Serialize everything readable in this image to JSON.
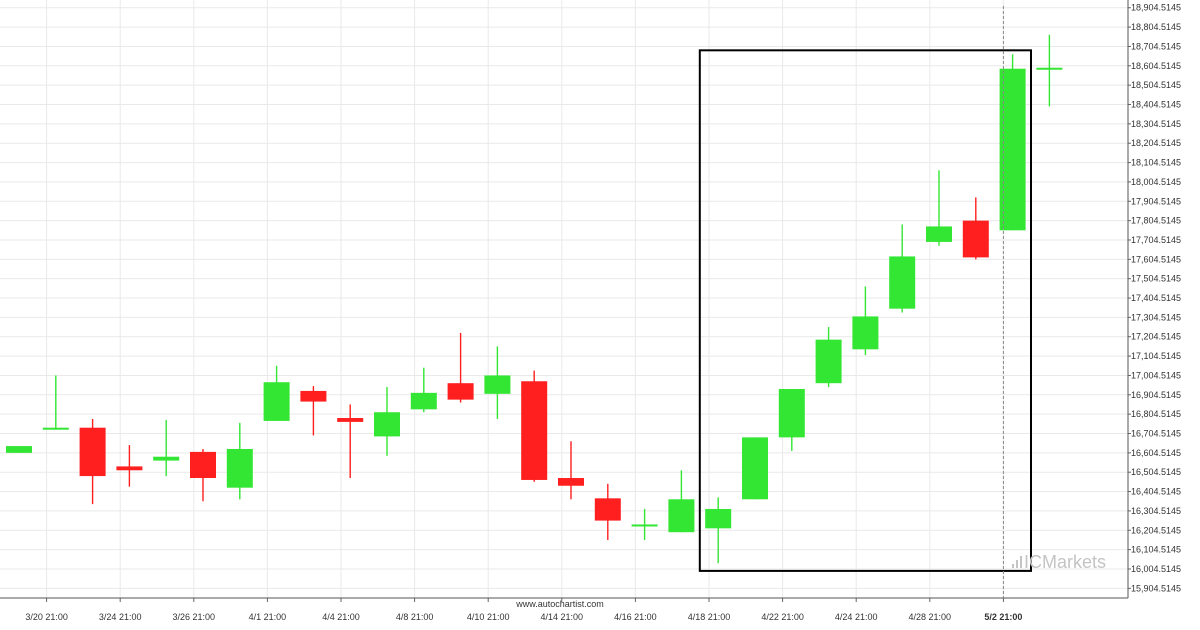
{
  "chart_data": {
    "type": "candlestick",
    "y_axis": {
      "side": "right",
      "range": [
        15854.5145,
        18944.5145
      ],
      "ticks": [
        "18,904.5145",
        "18,804.5145",
        "18,704.5145",
        "18,604.5145",
        "18,504.5145",
        "18,404.5145",
        "18,304.5145",
        "18,204.5145",
        "18,104.5145",
        "18,004.5145",
        "17,904.5145",
        "17,804.5145",
        "17,704.5145",
        "17,604.5145",
        "17,504.5145",
        "17,404.5145",
        "17,304.5145",
        "17,204.5145",
        "17,104.5145",
        "17,004.5145",
        "16,904.5145",
        "16,804.5145",
        "16,704.5145",
        "16,604.5145",
        "16,504.5145",
        "16,404.5145",
        "16,304.5145",
        "16,204.5145",
        "16,104.5145",
        "16,004.5145",
        "15,904.5145"
      ],
      "tick_values": [
        18904.5145,
        18804.5145,
        18704.5145,
        18604.5145,
        18504.5145,
        18404.5145,
        18304.5145,
        18204.5145,
        18104.5145,
        18004.5145,
        17904.5145,
        17804.5145,
        17704.5145,
        17604.5145,
        17504.5145,
        17404.5145,
        17304.5145,
        17204.5145,
        17104.5145,
        17004.5145,
        16904.5145,
        16804.5145,
        16704.5145,
        16604.5145,
        16504.5145,
        16404.5145,
        16304.5145,
        16204.5145,
        16104.5145,
        16004.5145,
        15904.5145
      ]
    },
    "x_axis": {
      "labels": [
        {
          "text": "3/20 21:00",
          "index": 0.75,
          "bold": false
        },
        {
          "text": "3/24 21:00",
          "index": 2.75,
          "bold": false
        },
        {
          "text": "3/26 21:00",
          "index": 4.75,
          "bold": false
        },
        {
          "text": "4/1 21:00",
          "index": 6.75,
          "bold": false
        },
        {
          "text": "4/4 21:00",
          "index": 8.75,
          "bold": false
        },
        {
          "text": "4/8 21:00",
          "index": 10.75,
          "bold": false
        },
        {
          "text": "4/10 21:00",
          "index": 12.75,
          "bold": false
        },
        {
          "text": "4/14 21:00",
          "index": 14.75,
          "bold": false
        },
        {
          "text": "4/16 21:00",
          "index": 16.75,
          "bold": false
        },
        {
          "text": "4/18 21:00",
          "index": 18.75,
          "bold": false
        },
        {
          "text": "4/22 21:00",
          "index": 20.75,
          "bold": false
        },
        {
          "text": "4/24 21:00",
          "index": 22.75,
          "bold": false
        },
        {
          "text": "4/28 21:00",
          "index": 24.75,
          "bold": false
        },
        {
          "text": "5/2 21:00",
          "index": 26.75,
          "bold": true
        }
      ]
    },
    "candles": [
      {
        "o": 16604.5,
        "h": 16639.5,
        "l": 16604.5,
        "c": 16639.5
      },
      {
        "o": 16724.5,
        "h": 17004.5,
        "l": 16724.5,
        "c": 16734.5
      },
      {
        "o": 16734.5,
        "h": 16779.5,
        "l": 16339.5,
        "c": 16484.5
      },
      {
        "o": 16534.5,
        "h": 16644.5,
        "l": 16429.5,
        "c": 16514.5
      },
      {
        "o": 16564.5,
        "h": 16774.5,
        "l": 16484.5,
        "c": 16584.5
      },
      {
        "o": 16609.5,
        "h": 16624.5,
        "l": 16354.5,
        "c": 16474.5
      },
      {
        "o": 16424.5,
        "h": 16759.5,
        "l": 16364.5,
        "c": 16624.5
      },
      {
        "o": 16769.5,
        "h": 17054.5,
        "l": 16769.5,
        "c": 16969.5
      },
      {
        "o": 16924.5,
        "h": 16949.5,
        "l": 16694.5,
        "c": 16869.5
      },
      {
        "o": 16784.5,
        "h": 16854.5,
        "l": 16474.5,
        "c": 16764.5
      },
      {
        "o": 16689.5,
        "h": 16944.5,
        "l": 16589.5,
        "c": 16814.5
      },
      {
        "o": 16829.5,
        "h": 17044.5,
        "l": 16814.5,
        "c": 16914.5
      },
      {
        "o": 16964.5,
        "h": 17224.5,
        "l": 16864.5,
        "c": 16879.5
      },
      {
        "o": 16909.5,
        "h": 17154.5,
        "l": 16779.5,
        "c": 17004.5
      },
      {
        "o": 16974.5,
        "h": 17029.5,
        "l": 16454.5,
        "c": 16464.5
      },
      {
        "o": 16474.5,
        "h": 16664.5,
        "l": 16364.5,
        "c": 16434.5
      },
      {
        "o": 16369.5,
        "h": 16444.5,
        "l": 16154.5,
        "c": 16254.5
      },
      {
        "o": 16234.5,
        "h": 16314.5,
        "l": 16154.5,
        "c": 16234.5
      },
      {
        "o": 16194.5,
        "h": 16514.5,
        "l": 16194.5,
        "c": 16364.5
      },
      {
        "o": 16214.5,
        "h": 16374.5,
        "l": 16034.5,
        "c": 16314.5
      },
      {
        "o": 16364.5,
        "h": 16684.5,
        "l": 16364.5,
        "c": 16684.5
      },
      {
        "o": 16684.5,
        "h": 16934.5,
        "l": 16614.5,
        "c": 16934.5
      },
      {
        "o": 16964.5,
        "h": 17254.5,
        "l": 16944.5,
        "c": 17189.5
      },
      {
        "o": 17139.5,
        "h": 17464.5,
        "l": 17109.5,
        "c": 17309.5
      },
      {
        "o": 17349.5,
        "h": 17784.5,
        "l": 17329.5,
        "c": 17619.5
      },
      {
        "o": 17694.5,
        "h": 18064.5,
        "l": 17674.5,
        "c": 17774.5
      },
      {
        "o": 17804.5,
        "h": 17924.5,
        "l": 17604.5,
        "c": 17614.5
      },
      {
        "o": 17754.5,
        "h": 18664.5,
        "l": 17754.5,
        "c": 18589.5
      },
      {
        "o": 18594.5,
        "h": 18764.5,
        "l": 18394.5,
        "c": 18594.5
      }
    ],
    "pattern_box": {
      "from_index": 18.5,
      "to_index": 27.5,
      "low": 15994.5,
      "high": 18684.5
    },
    "vline_index": 26.75,
    "grid": true,
    "colors": {
      "up": "#33e633",
      "down": "#ff1f1f",
      "grid": "#e9e9e9",
      "box": "#000000",
      "vline": "#888888"
    }
  },
  "footer": {
    "source": "www.autochartist.com",
    "brand_prefix": "IC",
    "brand_suffix": "Markets"
  }
}
